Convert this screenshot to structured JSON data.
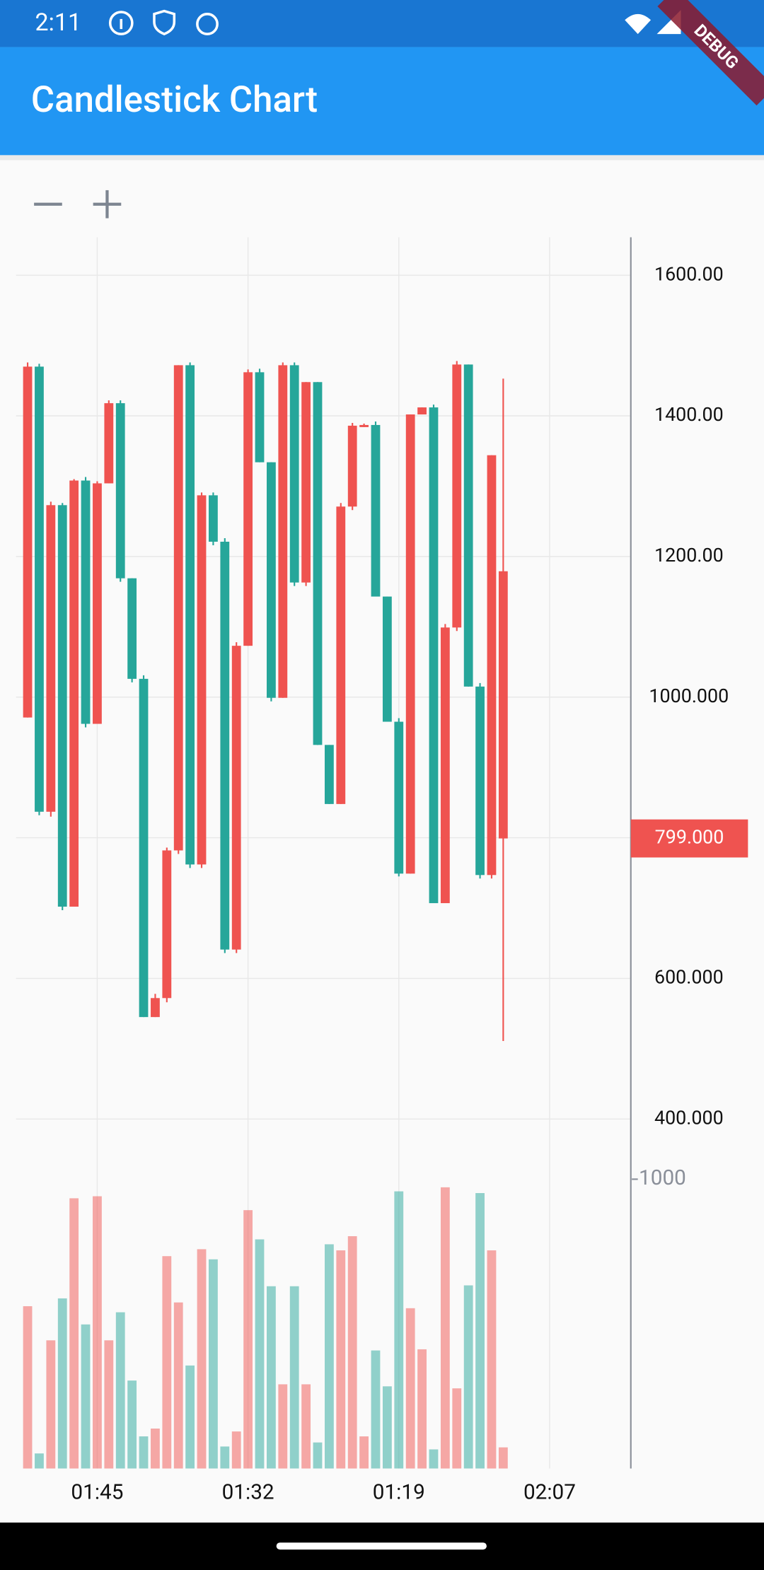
{
  "status_bar": {
    "time": "2:11"
  },
  "app_bar": {
    "title": "Candlestick Chart"
  },
  "debug_banner": "DEBUG",
  "chart_data": {
    "type": "candlestick",
    "up_color": "#26a69a",
    "down_color": "#ef5350",
    "grid": true,
    "open": [
      1470,
      837,
      1273,
      702,
      1308,
      962,
      1304,
      1418,
      1169,
      1026,
      545,
      572,
      782,
      1472,
      762,
      1287,
      1221,
      641,
      1073,
      1462,
      1334,
      999,
      1472,
      1163,
      1448,
      932,
      848,
      1271,
      1386,
      1387,
      1143,
      965,
      749,
      1402,
      1412,
      707,
      1099,
      1473,
      1015,
      747,
      1344,
      1179
    ],
    "high": [
      1476,
      1474,
      1278,
      1276,
      1310,
      1313,
      1307,
      1422,
      1422,
      1169,
      1031,
      578,
      786,
      1472,
      1476,
      1291,
      1291,
      1226,
      1078,
      1466,
      1467,
      1334,
      1476,
      1476,
      1448,
      1448,
      932,
      1276,
      1390,
      1389,
      1392,
      1143,
      970,
      1402,
      1412,
      1416,
      1104,
      1478,
      1473,
      1020,
      1344,
      1453
    ],
    "low": [
      971,
      832,
      830,
      697,
      702,
      957,
      962,
      1304,
      1164,
      1021,
      545,
      545,
      566,
      777,
      757,
      757,
      1216,
      636,
      636,
      1073,
      1334,
      994,
      999,
      1158,
      1158,
      932,
      848,
      848,
      1266,
      1384,
      1143,
      965,
      745,
      749,
      1402,
      707,
      707,
      1094,
      1015,
      742,
      742,
      511
    ],
    "close": [
      971,
      1470,
      837,
      1273,
      702,
      1308,
      962,
      1304,
      1418,
      1169,
      1026,
      545,
      572,
      782,
      1472,
      762,
      1287,
      1221,
      641,
      1073,
      1462,
      1334,
      999,
      1472,
      1163,
      1448,
      932,
      848,
      1271,
      1384,
      1387,
      1143,
      965,
      749,
      1402,
      1412,
      707,
      1099,
      1473,
      1015,
      747,
      799
    ],
    "volume": [
      561,
      52,
      443,
      588,
      934,
      498,
      941,
      443,
      540,
      304,
      111,
      138,
      734,
      574,
      356,
      758,
      723,
      76,
      128,
      893,
      792,
      630,
      291,
      630,
      291,
      90,
      775,
      754,
      803,
      111,
      408,
      284,
      958,
      554,
      412,
      66,
      972,
      277,
      633,
      952,
      754,
      73
    ],
    "xlim": [
      -1,
      52
    ],
    "xticks": [
      {
        "value": 6,
        "label": "01:45"
      },
      {
        "value": 19,
        "label": "01:32"
      },
      {
        "value": 32,
        "label": "01:19"
      },
      {
        "value": 45,
        "label": "02:07"
      }
    ],
    "ylim": [
      -97,
      1654
    ],
    "yticks": [
      {
        "value": 400,
        "label": "400.000"
      },
      {
        "value": 600,
        "label": "600.000"
      },
      {
        "value": 800,
        "label": "800.000"
      },
      {
        "value": 1000,
        "label": "1000.000"
      },
      {
        "value": 1200,
        "label": "1200.00"
      },
      {
        "value": 1400,
        "label": "1400.00"
      },
      {
        "value": 1600,
        "label": "1600.00"
      }
    ],
    "y2lim": [
      0,
      4256
    ],
    "y2ticks": [
      1000
    ],
    "last_price": {
      "value": 799,
      "label": "799.000"
    }
  }
}
